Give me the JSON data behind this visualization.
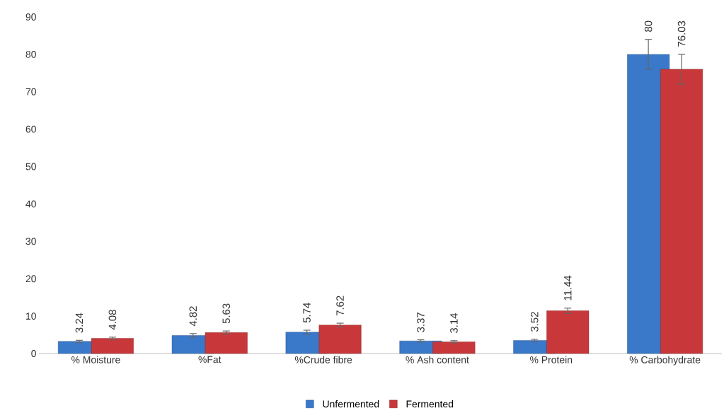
{
  "chart_data": {
    "type": "bar",
    "categories": [
      "% Moisture",
      "%Fat",
      "%Crude fibre",
      "% Ash content",
      "% Protein",
      "% Carbohydrate"
    ],
    "series": [
      {
        "name": "Unfermented",
        "color": "#3a78c9",
        "values": [
          3.24,
          4.82,
          5.74,
          3.37,
          3.52,
          80
        ],
        "errors": [
          0.3,
          0.5,
          0.5,
          0.3,
          0.3,
          4
        ]
      },
      {
        "name": "Fermented",
        "color": "#c8383a",
        "values": [
          4.08,
          5.63,
          7.62,
          3.14,
          11.44,
          76.03
        ],
        "errors": [
          0.3,
          0.4,
          0.5,
          0.3,
          0.7,
          4
        ]
      }
    ],
    "ylim": [
      0,
      90
    ],
    "yticks": [
      0,
      10,
      20,
      30,
      40,
      50,
      60,
      70,
      80,
      90
    ],
    "data_labels": true,
    "grid": false,
    "legend": "bottom"
  }
}
